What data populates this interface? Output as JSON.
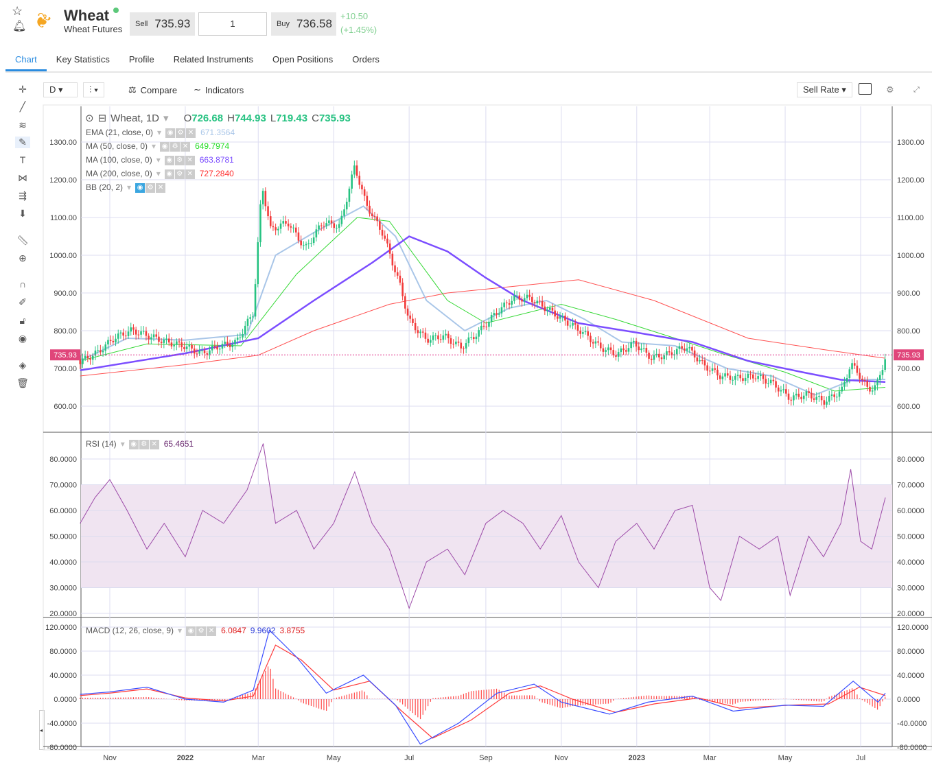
{
  "header": {
    "title": "Wheat",
    "subtitle": "Wheat Futures",
    "sell_label": "Sell",
    "sell": "735.93",
    "quantity": "1",
    "buy_label": "Buy",
    "buy": "736.58",
    "change": "+10.50",
    "change_pct": "(+1.45%)"
  },
  "tabs": [
    "Chart",
    "Key Statistics",
    "Profile",
    "Related Instruments",
    "Open Positions",
    "Orders"
  ],
  "toolbar": {
    "interval": "D",
    "compare": "Compare",
    "indicators": "Indicators",
    "rate": "Sell Rate"
  },
  "legend": {
    "symbol": "Wheat, 1D",
    "o_label": "O",
    "o": "726.68",
    "h_label": "H",
    "h": "744.93",
    "l_label": "L",
    "l": "719.43",
    "c_label": "C",
    "c": "735.93",
    "ema": "EMA (21, close, 0)",
    "ema_v": "671.3564",
    "ma50": "MA (50, close, 0)",
    "ma50_v": "649.7974",
    "ma100": "MA (100, close, 0)",
    "ma100_v": "663.8781",
    "ma200": "MA (200, close, 0)",
    "ma200_v": "727.2840",
    "bb": "BB (20, 2)",
    "rsi": "RSI (14)",
    "rsi_v": "65.4651",
    "macd": "MACD (12, 26, close, 9)",
    "macd_v1": "6.0847",
    "macd_v2": "9.9602",
    "macd_v3": "3.8755"
  },
  "colors": {
    "up": "#26c281",
    "down": "#f23b3b",
    "ema": "#a9c6e8",
    "ma50": "#34d834",
    "ma100": "#7b4dff",
    "ma200": "#ff5050",
    "rsi": "#9c4aa8",
    "macd": "#3a4dff",
    "signal": "#ff3a3a"
  },
  "chart_data": {
    "type": "line",
    "last_price": "735.93",
    "price_ticks": [
      "1300.00",
      "1200.00",
      "1100.00",
      "1000.00",
      "900.00",
      "800.00",
      "700.00",
      "600.00"
    ],
    "rsi_ticks": [
      "80.0000",
      "70.0000",
      "60.0000",
      "50.0000",
      "40.0000",
      "30.0000",
      "20.0000"
    ],
    "macd_ticks": [
      "120.0000",
      "80.0000",
      "40.0000",
      "0.0000",
      "-40.0000",
      "-80.0000"
    ],
    "x_labels": [
      {
        "d": "2021-11-01",
        "t": "Nov",
        "b": 0
      },
      {
        "d": "2022-01-01",
        "t": "2022",
        "b": 1
      },
      {
        "d": "2022-03-01",
        "t": "Mar",
        "b": 0
      },
      {
        "d": "2022-05-01",
        "t": "May",
        "b": 0
      },
      {
        "d": "2022-07-01",
        "t": "Jul",
        "b": 0
      },
      {
        "d": "2022-09-01",
        "t": "Sep",
        "b": 0
      },
      {
        "d": "2022-11-01",
        "t": "Nov",
        "b": 0
      },
      {
        "d": "2023-01-01",
        "t": "2023",
        "b": 1
      },
      {
        "d": "2023-03-01",
        "t": "Mar",
        "b": 0
      },
      {
        "d": "2023-05-01",
        "t": "May",
        "b": 0
      },
      {
        "d": "2023-07-01",
        "t": "Jul",
        "b": 0
      }
    ],
    "close": [
      [
        "2021-10-08",
        725
      ],
      [
        "2021-10-22",
        750
      ],
      [
        "2021-11-05",
        790
      ],
      [
        "2021-11-19",
        810
      ],
      [
        "2021-12-03",
        795
      ],
      [
        "2021-12-17",
        780
      ],
      [
        "2021-12-31",
        770
      ],
      [
        "2022-01-14",
        750
      ],
      [
        "2022-01-28",
        770
      ],
      [
        "2022-02-11",
        780
      ],
      [
        "2022-02-25",
        860
      ],
      [
        "2022-03-04",
        1200
      ],
      [
        "2022-03-11",
        1080
      ],
      [
        "2022-03-25",
        1100
      ],
      [
        "2022-04-08",
        1030
      ],
      [
        "2022-04-22",
        1100
      ],
      [
        "2022-05-06",
        1090
      ],
      [
        "2022-05-18",
        1250
      ],
      [
        "2022-05-27",
        1150
      ],
      [
        "2022-06-10",
        1070
      ],
      [
        "2022-06-24",
        930
      ],
      [
        "2022-07-01",
        840
      ],
      [
        "2022-07-15",
        790
      ],
      [
        "2022-07-29",
        800
      ],
      [
        "2022-08-12",
        770
      ],
      [
        "2022-08-26",
        810
      ],
      [
        "2022-09-09",
        860
      ],
      [
        "2022-09-23",
        900
      ],
      [
        "2022-10-07",
        900
      ],
      [
        "2022-10-21",
        870
      ],
      [
        "2022-11-04",
        840
      ],
      [
        "2022-11-18",
        810
      ],
      [
        "2022-12-02",
        770
      ],
      [
        "2022-12-16",
        750
      ],
      [
        "2022-12-30",
        780
      ],
      [
        "2023-01-13",
        740
      ],
      [
        "2023-01-27",
        750
      ],
      [
        "2023-02-10",
        770
      ],
      [
        "2023-02-24",
        720
      ],
      [
        "2023-03-10",
        690
      ],
      [
        "2023-03-24",
        685
      ],
      [
        "2023-04-07",
        690
      ],
      [
        "2023-04-21",
        670
      ],
      [
        "2023-05-05",
        630
      ],
      [
        "2023-05-19",
        640
      ],
      [
        "2023-06-02",
        620
      ],
      [
        "2023-06-16",
        650
      ],
      [
        "2023-06-23",
        720
      ],
      [
        "2023-06-30",
        690
      ],
      [
        "2023-07-07",
        650
      ],
      [
        "2023-07-14",
        660
      ],
      [
        "2023-07-21",
        736
      ]
    ],
    "ema21": [
      [
        "2021-10-08",
        720
      ],
      [
        "2021-11-15",
        780
      ],
      [
        "2022-01-01",
        775
      ],
      [
        "2022-02-20",
        790
      ],
      [
        "2022-03-15",
        1000
      ],
      [
        "2022-04-15",
        1060
      ],
      [
        "2022-05-25",
        1130
      ],
      [
        "2022-06-20",
        1050
      ],
      [
        "2022-07-15",
        880
      ],
      [
        "2022-08-15",
        800
      ],
      [
        "2022-09-20",
        860
      ],
      [
        "2022-10-20",
        880
      ],
      [
        "2022-11-20",
        830
      ],
      [
        "2022-12-20",
        770
      ],
      [
        "2023-02-01",
        760
      ],
      [
        "2023-03-15",
        700
      ],
      [
        "2023-04-20",
        680
      ],
      [
        "2023-05-25",
        630
      ],
      [
        "2023-06-25",
        670
      ],
      [
        "2023-07-21",
        671
      ]
    ],
    "ma50": [
      [
        "2021-10-08",
        720
      ],
      [
        "2021-12-01",
        765
      ],
      [
        "2022-02-15",
        760
      ],
      [
        "2022-04-01",
        950
      ],
      [
        "2022-05-20",
        1100
      ],
      [
        "2022-06-15",
        1090
      ],
      [
        "2022-08-01",
        880
      ],
      [
        "2022-09-01",
        820
      ],
      [
        "2022-11-01",
        870
      ],
      [
        "2022-12-15",
        830
      ],
      [
        "2023-02-01",
        780
      ],
      [
        "2023-03-10",
        740
      ],
      [
        "2023-05-01",
        690
      ],
      [
        "2023-06-10",
        640
      ],
      [
        "2023-07-21",
        650
      ]
    ],
    "ma100": [
      [
        "2021-10-08",
        695
      ],
      [
        "2022-01-01",
        740
      ],
      [
        "2022-03-01",
        780
      ],
      [
        "2022-04-15",
        880
      ],
      [
        "2022-06-01",
        980
      ],
      [
        "2022-07-01",
        1050
      ],
      [
        "2022-08-01",
        1010
      ],
      [
        "2022-09-01",
        940
      ],
      [
        "2022-10-01",
        880
      ],
      [
        "2022-11-15",
        820
      ],
      [
        "2023-01-01",
        795
      ],
      [
        "2023-02-15",
        770
      ],
      [
        "2023-04-01",
        720
      ],
      [
        "2023-05-15",
        690
      ],
      [
        "2023-06-15",
        670
      ],
      [
        "2023-07-21",
        664
      ]
    ],
    "ma200": [
      [
        "2021-10-08",
        680
      ],
      [
        "2022-01-01",
        710
      ],
      [
        "2022-03-01",
        735
      ],
      [
        "2022-04-15",
        800
      ],
      [
        "2022-06-15",
        870
      ],
      [
        "2022-08-01",
        900
      ],
      [
        "2022-10-01",
        920
      ],
      [
        "2022-11-15",
        935
      ],
      [
        "2023-01-15",
        880
      ],
      [
        "2023-04-01",
        780
      ],
      [
        "2023-06-01",
        750
      ],
      [
        "2023-07-21",
        727
      ]
    ],
    "rsi": [
      [
        "2021-10-08",
        55
      ],
      [
        "2021-10-20",
        65
      ],
      [
        "2021-11-01",
        72
      ],
      [
        "2021-11-15",
        60
      ],
      [
        "2021-12-01",
        45
      ],
      [
        "2021-12-15",
        55
      ],
      [
        "2022-01-01",
        42
      ],
      [
        "2022-01-15",
        60
      ],
      [
        "2022-02-01",
        55
      ],
      [
        "2022-02-20",
        68
      ],
      [
        "2022-03-05",
        86
      ],
      [
        "2022-03-15",
        55
      ],
      [
        "2022-04-01",
        60
      ],
      [
        "2022-04-15",
        45
      ],
      [
        "2022-05-01",
        55
      ],
      [
        "2022-05-18",
        75
      ],
      [
        "2022-06-01",
        55
      ],
      [
        "2022-06-15",
        45
      ],
      [
        "2022-07-01",
        22
      ],
      [
        "2022-07-15",
        40
      ],
      [
        "2022-08-01",
        45
      ],
      [
        "2022-08-15",
        35
      ],
      [
        "2022-09-01",
        55
      ],
      [
        "2022-09-15",
        60
      ],
      [
        "2022-10-01",
        55
      ],
      [
        "2022-10-15",
        45
      ],
      [
        "2022-11-01",
        58
      ],
      [
        "2022-11-15",
        40
      ],
      [
        "2022-12-01",
        30
      ],
      [
        "2022-12-15",
        48
      ],
      [
        "2023-01-01",
        55
      ],
      [
        "2023-01-15",
        45
      ],
      [
        "2023-02-01",
        60
      ],
      [
        "2023-02-15",
        62
      ],
      [
        "2023-03-01",
        30
      ],
      [
        "2023-03-10",
        25
      ],
      [
        "2023-03-25",
        50
      ],
      [
        "2023-04-10",
        45
      ],
      [
        "2023-04-25",
        50
      ],
      [
        "2023-05-05",
        27
      ],
      [
        "2023-05-20",
        50
      ],
      [
        "2023-06-01",
        42
      ],
      [
        "2023-06-15",
        55
      ],
      [
        "2023-06-23",
        76
      ],
      [
        "2023-07-01",
        48
      ],
      [
        "2023-07-10",
        45
      ],
      [
        "2023-07-21",
        65
      ]
    ],
    "macd": [
      [
        "2021-10-08",
        8
      ],
      [
        "2021-11-01",
        12
      ],
      [
        "2021-12-01",
        20
      ],
      [
        "2022-01-01",
        0
      ],
      [
        "2022-02-01",
        -5
      ],
      [
        "2022-02-25",
        15
      ],
      [
        "2022-03-10",
        115
      ],
      [
        "2022-04-01",
        70
      ],
      [
        "2022-04-25",
        10
      ],
      [
        "2022-05-25",
        40
      ],
      [
        "2022-06-20",
        -10
      ],
      [
        "2022-07-10",
        -75
      ],
      [
        "2022-08-10",
        -40
      ],
      [
        "2022-09-10",
        10
      ],
      [
        "2022-10-10",
        25
      ],
      [
        "2022-11-01",
        -5
      ],
      [
        "2022-12-10",
        -25
      ],
      [
        "2023-01-10",
        -5
      ],
      [
        "2023-02-15",
        5
      ],
      [
        "2023-03-20",
        -20
      ],
      [
        "2023-05-01",
        -10
      ],
      [
        "2023-06-01",
        -12
      ],
      [
        "2023-06-25",
        30
      ],
      [
        "2023-07-15",
        -5
      ],
      [
        "2023-07-21",
        10
      ]
    ],
    "signal": [
      [
        "2021-10-08",
        6
      ],
      [
        "2021-11-01",
        10
      ],
      [
        "2021-12-01",
        17
      ],
      [
        "2022-01-01",
        2
      ],
      [
        "2022-02-01",
        -3
      ],
      [
        "2022-02-25",
        5
      ],
      [
        "2022-03-15",
        90
      ],
      [
        "2022-04-05",
        65
      ],
      [
        "2022-05-01",
        15
      ],
      [
        "2022-05-30",
        30
      ],
      [
        "2022-06-25",
        -20
      ],
      [
        "2022-07-20",
        -65
      ],
      [
        "2022-08-20",
        -35
      ],
      [
        "2022-09-20",
        10
      ],
      [
        "2022-10-15",
        22
      ],
      [
        "2022-11-10",
        0
      ],
      [
        "2022-12-15",
        -22
      ],
      [
        "2023-01-15",
        -8
      ],
      [
        "2023-02-20",
        2
      ],
      [
        "2023-03-25",
        -15
      ],
      [
        "2023-05-05",
        -10
      ],
      [
        "2023-06-05",
        -8
      ],
      [
        "2023-06-30",
        20
      ],
      [
        "2023-07-21",
        6
      ]
    ]
  }
}
